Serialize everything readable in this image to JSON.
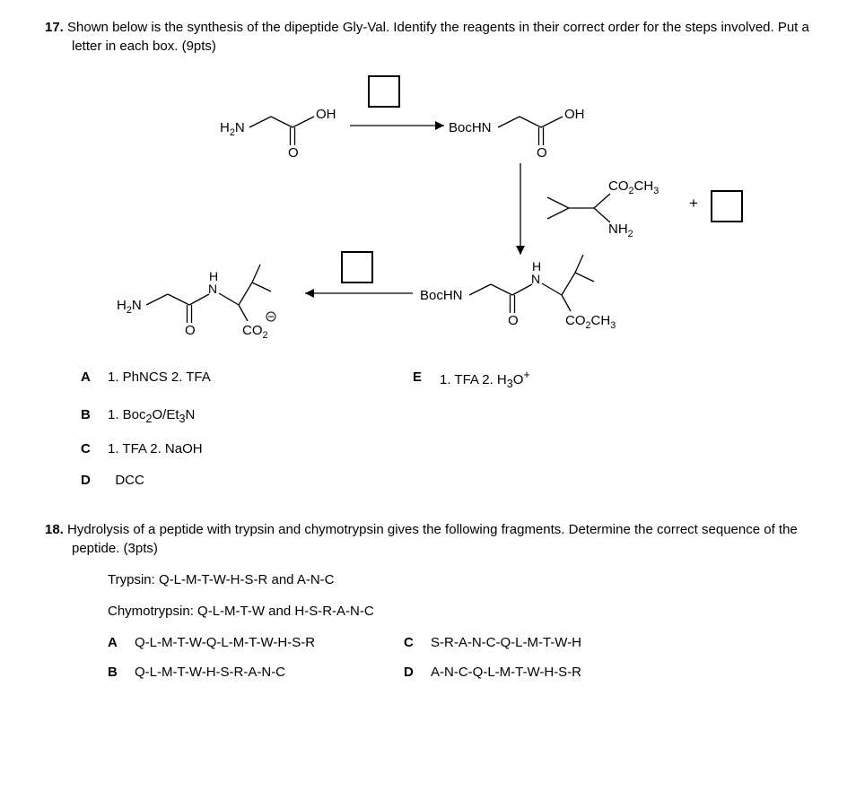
{
  "q17": {
    "number": "17.",
    "stem": "Shown below is the synthesis of the dipeptide Gly-Val.  Identify the reagents in their correct order for the steps involved.  Put a letter in each box.  (9pts)",
    "compound1": {
      "left": "H₂N",
      "right": "OH"
    },
    "compound2": {
      "left": "BocHN",
      "right": "OH"
    },
    "reagent2": {
      "top": "CO₂CH₃",
      "bottom": "NH₂",
      "plus": "+"
    },
    "compound3": {
      "left": "BocHN",
      "right": "CO₂CH₃"
    },
    "compound4": {
      "left": "H₂N",
      "right": "CO₂",
      "charge": "⊖"
    },
    "amide_H": "H",
    "amide_N": "N",
    "carbonyl_O": "O",
    "options": {
      "A": "1. PhNCS  2. TFA",
      "B": "1. Boc₂O/Et₃N",
      "C": "1. TFA  2. NaOH",
      "D": "DCC",
      "E": "1. TFA  2. H₃O⁺"
    }
  },
  "q18": {
    "number": "18.",
    "stem": "Hydrolysis of a peptide with trypsin and chymotrypsin gives the following fragments.  Determine the correct sequence of the peptide. (3pts)",
    "trypsin_label": "Trypsin:  Q-L-M-T-W-H-S-R and A-N-C",
    "chymo_label": "Chymotrypsin:  Q-L-M-T-W and H-S-R-A-N-C",
    "options": {
      "A": "Q-L-M-T-W-Q-L-M-T-W-H-S-R",
      "B": "Q-L-M-T-W-H-S-R-A-N-C",
      "C": "S-R-A-N-C-Q-L-M-T-W-H",
      "D": "A-N-C-Q-L-M-T-W-H-S-R"
    }
  }
}
